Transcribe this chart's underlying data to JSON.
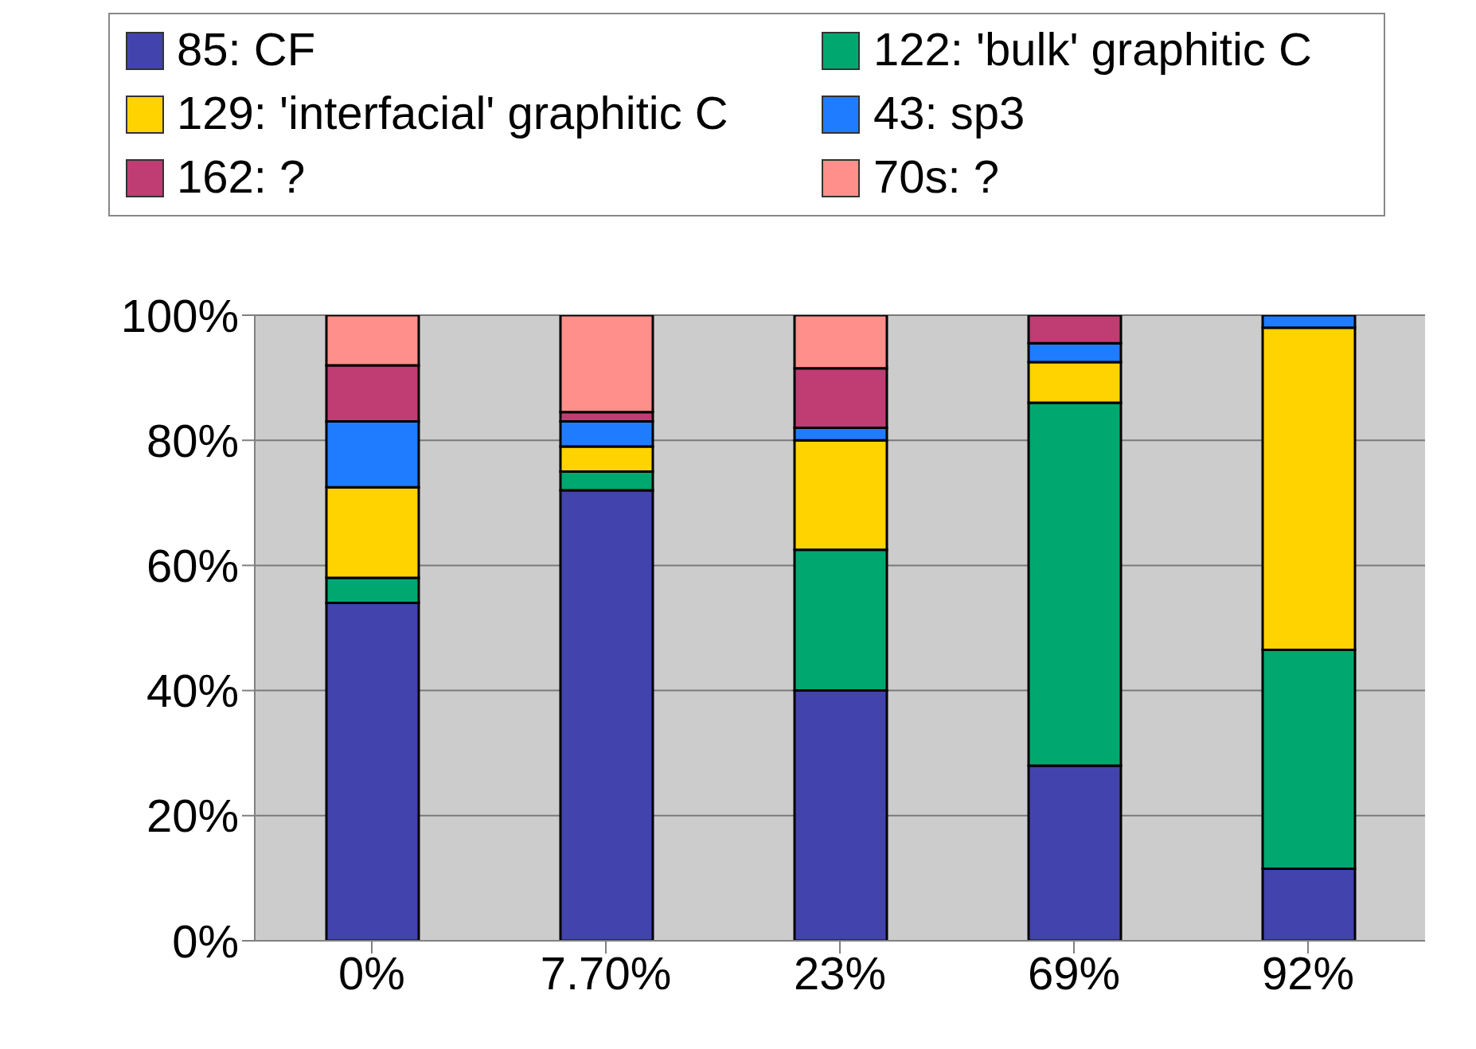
{
  "chart_data": {
    "type": "bar",
    "stacked": true,
    "categories": [
      "0%",
      "7.70%",
      "23%",
      "69%",
      "92%"
    ],
    "series": [
      {
        "name": "85: CF",
        "color": "#4343ae",
        "values": [
          54,
          72,
          40,
          28,
          11.5
        ]
      },
      {
        "name": "122: 'bulk' graphitic C",
        "color": "#00a86f",
        "values": [
          4,
          3,
          22.5,
          58,
          35
        ]
      },
      {
        "name": "129: 'interfacial' graphitic C",
        "color": "#ffd300",
        "values": [
          14.5,
          4,
          17.5,
          6.5,
          51.5
        ]
      },
      {
        "name": "43: sp3",
        "color": "#1f7cff",
        "values": [
          10.5,
          4,
          2,
          3,
          2
        ]
      },
      {
        "name": "162: ?",
        "color": "#bf3d73",
        "values": [
          9,
          1.5,
          9.5,
          4.5,
          0
        ]
      },
      {
        "name": "70s: ?",
        "color": "#ff8f8a",
        "values": [
          8,
          15.5,
          8.5,
          0,
          0
        ]
      }
    ],
    "ylim": [
      0,
      100
    ],
    "yticks": [
      {
        "value": 0,
        "label": "0%"
      },
      {
        "value": 20,
        "label": "20%"
      },
      {
        "value": 40,
        "label": "40%"
      },
      {
        "value": 60,
        "label": "60%"
      },
      {
        "value": 80,
        "label": "80%"
      },
      {
        "value": 100,
        "label": "100%"
      }
    ],
    "grid": "y",
    "legend": "top"
  }
}
